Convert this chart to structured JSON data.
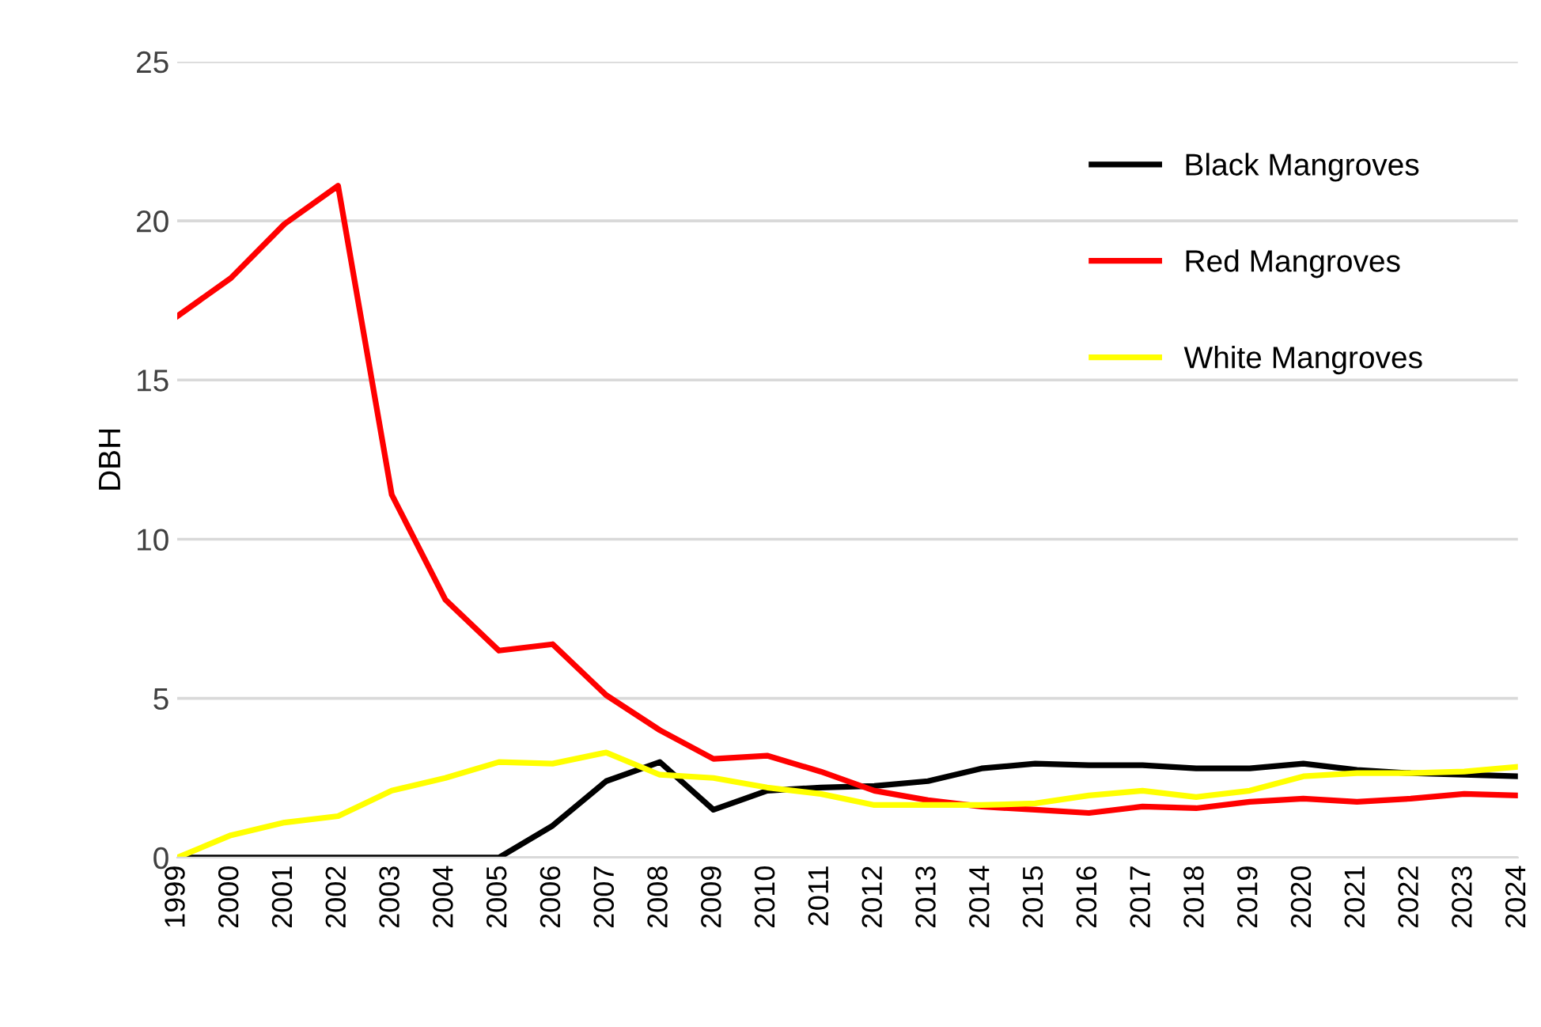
{
  "chart_data": {
    "type": "line",
    "ylabel": "DBH",
    "categories": [
      "1999",
      "2000",
      "2001",
      "2002",
      "2003",
      "2004",
      "2005",
      "2006",
      "2007",
      "2008",
      "2009",
      "2010",
      "2011",
      "2012",
      "2013",
      "2014",
      "2015",
      "2016",
      "2017",
      "2018",
      "2019",
      "2020",
      "2021",
      "2022",
      "2023",
      "2024"
    ],
    "series": [
      {
        "name": "Black Mangroves",
        "color": "#000000",
        "values": [
          0,
          0,
          0,
          0,
          0,
          0,
          0,
          1.0,
          2.4,
          3.0,
          1.5,
          2.1,
          2.2,
          2.25,
          2.4,
          2.8,
          2.95,
          2.9,
          2.9,
          2.8,
          2.8,
          2.95,
          2.75,
          2.65,
          2.6,
          2.55
        ]
      },
      {
        "name": "Red Mangroves",
        "color": "#ff0000",
        "values": [
          17,
          18.2,
          19.9,
          21.1,
          11.4,
          8.1,
          6.5,
          6.7,
          5.1,
          4.0,
          3.1,
          3.2,
          2.7,
          2.1,
          1.8,
          1.6,
          1.5,
          1.4,
          1.6,
          1.55,
          1.75,
          1.85,
          1.75,
          1.85,
          2.0,
          1.95
        ]
      },
      {
        "name": "White Mangroves",
        "color": "#ffff00",
        "values": [
          0,
          0.7,
          1.1,
          1.3,
          2.1,
          2.5,
          3.0,
          2.95,
          3.3,
          2.6,
          2.5,
          2.2,
          2.0,
          1.65,
          1.65,
          1.65,
          1.7,
          1.95,
          2.1,
          1.9,
          2.1,
          2.55,
          2.65,
          2.65,
          2.7,
          2.85
        ]
      }
    ],
    "ylim": [
      0,
      25
    ],
    "yticks": [
      0,
      5,
      10,
      15,
      20,
      25
    ],
    "grid": "y",
    "legend": "top right",
    "marker": "none",
    "line_style": "solid"
  }
}
